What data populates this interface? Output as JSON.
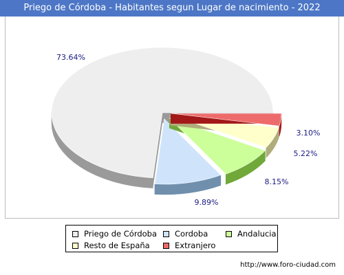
{
  "title": "Priego de Córdoba - Habitantes segun Lugar de nacimiento - 2022",
  "footer_url": "http://www.foro-ciudad.com",
  "chart_data": {
    "type": "pie",
    "title": "Priego de Córdoba - Habitantes segun Lugar de nacimiento - 2022",
    "legend_position": "bottom",
    "slices": [
      {
        "name": "Priego de Córdoba",
        "value": 73.64,
        "label": "73.64%",
        "color": "#eeeeee",
        "side_color": "#9a9a9a"
      },
      {
        "name": "Cordoba",
        "value": 9.89,
        "label": "9.89%",
        "color": "#cfe4fb",
        "side_color": "#6f8fad"
      },
      {
        "name": "Andalucia",
        "value": 8.15,
        "label": "8.15%",
        "color": "#ccff99",
        "side_color": "#70a83a"
      },
      {
        "name": "Resto de España",
        "value": 5.22,
        "label": "5.22%",
        "color": "#ffffcc",
        "side_color": "#b0ad7c"
      },
      {
        "name": "Extranjero",
        "value": 3.1,
        "label": "3.10%",
        "color": "#ee6b6b",
        "side_color": "#a31818"
      }
    ]
  }
}
